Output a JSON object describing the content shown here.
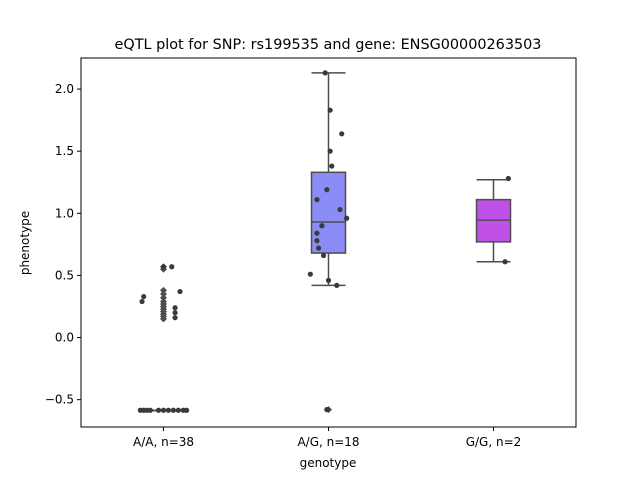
{
  "chart_data": {
    "type": "box",
    "title": "eQTL plot for SNP: rs199535 and gene: ENSG00000263503",
    "xlabel": "genotype",
    "ylabel": "phenotype",
    "ylim": [
      -0.72,
      2.25
    ],
    "yticks": [
      -0.5,
      0.0,
      0.5,
      1.0,
      1.5,
      2.0
    ],
    "ytick_labels": [
      "−0.5",
      "0.0",
      "0.5",
      "1.0",
      "1.5",
      "2.0"
    ],
    "categories": [
      "A/A, n=38",
      "A/G, n=18",
      "G/G, n=2"
    ],
    "boxes": [
      {
        "category": "A/A, n=38",
        "color": "#ffffff",
        "q1": -0.585,
        "median": -0.585,
        "q3": -0.585,
        "whisker_low": -0.585,
        "whisker_high": -0.585,
        "outliers": [
          0.57,
          0.55,
          0.38,
          0.35,
          0.32,
          0.29,
          0.27,
          0.25,
          0.23,
          0.21,
          0.19,
          0.17,
          0.15
        ]
      },
      {
        "category": "A/G, n=18",
        "color": "#8b8cf5",
        "q1": 0.68,
        "median": 0.93,
        "q3": 1.33,
        "whisker_low": 0.42,
        "whisker_high": 2.13,
        "outliers": [
          -0.58
        ]
      },
      {
        "category": "G/G, n=2",
        "color": "#c050e8",
        "q1": 0.77,
        "median": 0.945,
        "q3": 1.11,
        "whisker_low": 0.61,
        "whisker_high": 1.27,
        "outliers": []
      }
    ],
    "points": [
      {
        "cat": 0,
        "jitter": 0.0,
        "y": 0.57
      },
      {
        "cat": 0,
        "jitter": 0.05,
        "y": 0.57
      },
      {
        "cat": 0,
        "jitter": -0.12,
        "y": 0.33
      },
      {
        "cat": 0,
        "jitter": -0.13,
        "y": 0.29
      },
      {
        "cat": 0,
        "jitter": 0.1,
        "y": 0.37
      },
      {
        "cat": 0,
        "jitter": 0.07,
        "y": 0.24
      },
      {
        "cat": 0,
        "jitter": 0.07,
        "y": 0.2
      },
      {
        "cat": 0,
        "jitter": 0.07,
        "y": 0.16
      },
      {
        "cat": 0,
        "jitter": -0.14,
        "y": -0.585
      },
      {
        "cat": 0,
        "jitter": -0.12,
        "y": -0.585
      },
      {
        "cat": 0,
        "jitter": -0.1,
        "y": -0.585
      },
      {
        "cat": 0,
        "jitter": -0.08,
        "y": -0.585
      },
      {
        "cat": 0,
        "jitter": -0.03,
        "y": -0.585
      },
      {
        "cat": 0,
        "jitter": 0.0,
        "y": -0.585
      },
      {
        "cat": 0,
        "jitter": 0.03,
        "y": -0.585
      },
      {
        "cat": 0,
        "jitter": 0.06,
        "y": -0.585
      },
      {
        "cat": 0,
        "jitter": 0.09,
        "y": -0.585
      },
      {
        "cat": 0,
        "jitter": 0.12,
        "y": -0.585
      },
      {
        "cat": 0,
        "jitter": 0.14,
        "y": -0.585
      },
      {
        "cat": 1,
        "jitter": -0.02,
        "y": 2.13
      },
      {
        "cat": 1,
        "jitter": 0.01,
        "y": 1.83
      },
      {
        "cat": 1,
        "jitter": 0.08,
        "y": 1.64
      },
      {
        "cat": 1,
        "jitter": 0.01,
        "y": 1.5
      },
      {
        "cat": 1,
        "jitter": 0.02,
        "y": 1.38
      },
      {
        "cat": 1,
        "jitter": -0.01,
        "y": 1.19
      },
      {
        "cat": 1,
        "jitter": -0.07,
        "y": 1.11
      },
      {
        "cat": 1,
        "jitter": 0.07,
        "y": 1.03
      },
      {
        "cat": 1,
        "jitter": 0.11,
        "y": 0.96
      },
      {
        "cat": 1,
        "jitter": -0.04,
        "y": 0.9
      },
      {
        "cat": 1,
        "jitter": -0.07,
        "y": 0.84
      },
      {
        "cat": 1,
        "jitter": -0.07,
        "y": 0.78
      },
      {
        "cat": 1,
        "jitter": -0.06,
        "y": 0.72
      },
      {
        "cat": 1,
        "jitter": -0.03,
        "y": 0.66
      },
      {
        "cat": 1,
        "jitter": -0.11,
        "y": 0.51
      },
      {
        "cat": 1,
        "jitter": 0.0,
        "y": 0.46
      },
      {
        "cat": 1,
        "jitter": 0.05,
        "y": 0.42
      },
      {
        "cat": 1,
        "jitter": -0.01,
        "y": -0.58
      },
      {
        "cat": 2,
        "jitter": 0.09,
        "y": 1.28
      },
      {
        "cat": 2,
        "jitter": 0.07,
        "y": 0.61
      }
    ],
    "grid": false,
    "legend": "none"
  }
}
